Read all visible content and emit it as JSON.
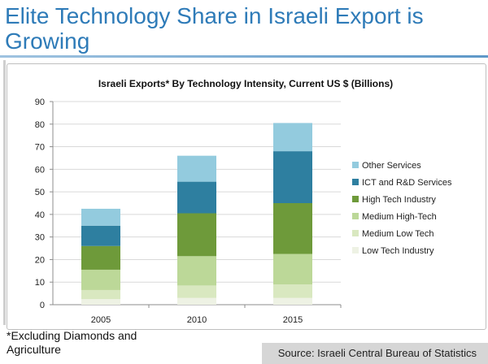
{
  "slide": {
    "title": "Elite Technology Share in Israeli Export is Growing",
    "footnote": "*Excluding Diamonds and Agriculture",
    "source": "Source: Israeli Central Bureau of Statistics"
  },
  "colors": {
    "title": "#2e7bb8",
    "Low Tech Industry": "#eef2e4",
    "Medium Low Tech": "#d9e8c0",
    "Medium High-Tech": "#bcd898",
    "High Tech Industry": "#6e9a3a",
    "ICT and R&D Services": "#2e7fa0",
    "Other Services": "#93cbde"
  },
  "chart_data": {
    "type": "bar",
    "stacked": true,
    "title": "Israeli Exports* By Technology Intensity, Current US $ (Billions)",
    "xlabel": "",
    "ylabel": "",
    "categories": [
      "2005",
      "2010",
      "2015"
    ],
    "ylim": [
      0,
      90
    ],
    "yticks": [
      0,
      10,
      20,
      30,
      40,
      50,
      60,
      70,
      80,
      90
    ],
    "grid": true,
    "legend_position": "right",
    "series": [
      {
        "name": "Low Tech Industry",
        "values": [
          2.5,
          3,
          3
        ]
      },
      {
        "name": "Medium Low Tech",
        "values": [
          4,
          5.5,
          6
        ]
      },
      {
        "name": "Medium High-Tech",
        "values": [
          9,
          13,
          13.5
        ]
      },
      {
        "name": "High Tech Industry",
        "values": [
          10.5,
          19,
          22.5
        ]
      },
      {
        "name": "ICT and R&D Services",
        "values": [
          9,
          14,
          23
        ]
      },
      {
        "name": "Other Services",
        "values": [
          7.5,
          11.5,
          12.5
        ]
      }
    ]
  }
}
